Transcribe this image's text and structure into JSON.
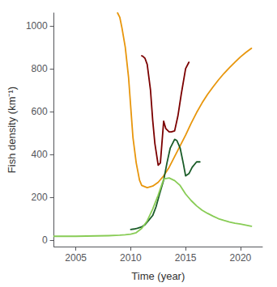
{
  "chart_data": {
    "type": "line",
    "xlabel": "Time (year)",
    "ylabel": "Fish density (km⁻¹)",
    "xlim": [
      2003,
      2022
    ],
    "ylim": [
      -30,
      1060
    ],
    "xticks": [
      2005,
      2010,
      2015,
      2020
    ],
    "yticks": [
      0,
      200,
      400,
      600,
      800,
      1000
    ],
    "grid": false,
    "series": [
      {
        "color": "#E8960C",
        "x": [
          2008.8,
          2009.0,
          2009.2,
          2009.5,
          2009.8,
          2010.0,
          2010.2,
          2010.5,
          2010.8,
          2011.0,
          2011.5,
          2012.0,
          2012.5,
          2013.0,
          2013.5,
          2014.0,
          2014.5,
          2015.0,
          2015.5,
          2016.0,
          2016.5,
          2017.0,
          2017.5,
          2018.0,
          2018.5,
          2019.0,
          2019.5,
          2020.0,
          2020.5,
          2021.0
        ],
        "values": [
          1060,
          1040,
          990,
          900,
          760,
          620,
          480,
          360,
          280,
          255,
          245,
          252,
          270,
          300,
          340,
          390,
          440,
          490,
          545,
          595,
          640,
          680,
          715,
          748,
          778,
          805,
          830,
          855,
          876,
          895
        ]
      },
      {
        "color": "#7B0000",
        "x": [
          2011.0,
          2011.1,
          2011.3,
          2011.5,
          2011.8,
          2012.0,
          2012.2,
          2012.5,
          2012.7,
          2013.0,
          2013.2,
          2013.5,
          2013.7,
          2014.0,
          2014.3,
          2014.6,
          2015.0,
          2015.3
        ],
        "values": [
          860,
          858,
          848,
          820,
          700,
          560,
          450,
          350,
          360,
          555,
          520,
          505,
          505,
          510,
          580,
          680,
          800,
          830
        ]
      },
      {
        "color": "#1A5C28",
        "x": [
          2010.0,
          2010.3,
          2010.6,
          2011.0,
          2011.3,
          2011.6,
          2012.0,
          2012.3,
          2012.6,
          2013.0,
          2013.3,
          2013.6,
          2014.0,
          2014.2,
          2014.5,
          2014.8,
          2015.0,
          2015.3,
          2015.6,
          2016.0,
          2016.3
        ],
        "values": [
          50,
          52,
          55,
          62,
          72,
          90,
          115,
          155,
          210,
          280,
          360,
          430,
          470,
          465,
          430,
          355,
          300,
          310,
          340,
          365,
          365
        ]
      },
      {
        "color": "#88CC55",
        "x": [
          2003.0,
          2004.0,
          2005.0,
          2006.0,
          2007.0,
          2008.0,
          2009.0,
          2009.5,
          2010.0,
          2010.5,
          2011.0,
          2011.5,
          2012.0,
          2012.5,
          2013.0,
          2013.5,
          2014.0,
          2014.5,
          2015.0,
          2015.5,
          2016.0,
          2016.5,
          2017.0,
          2017.5,
          2018.0,
          2018.5,
          2019.0,
          2019.5,
          2020.0,
          2021.0
        ],
        "values": [
          18,
          18,
          18,
          19,
          20,
          21,
          23,
          25,
          28,
          35,
          55,
          90,
          145,
          210,
          285,
          290,
          278,
          255,
          215,
          185,
          160,
          140,
          125,
          112,
          100,
          92,
          85,
          79,
          75,
          65
        ]
      }
    ]
  }
}
